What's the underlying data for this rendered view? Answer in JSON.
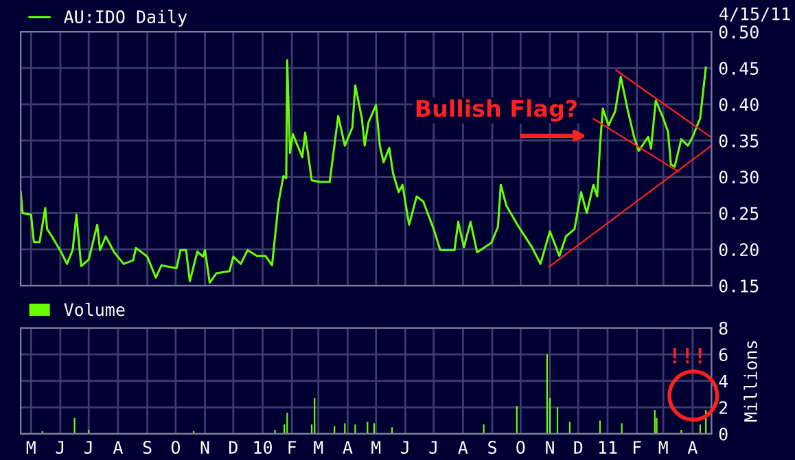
{
  "chart_data": [
    {
      "type": "line",
      "grid": true,
      "legend": "top left",
      "tick_labels": "y",
      "xlim": [
        "2009-04-20",
        "2011-04-21"
      ],
      "ylim": [
        0.15,
        0.5
      ],
      "yticks": [
        {
          "value": 0.15,
          "label": "0.15"
        },
        {
          "value": 0.2,
          "label": "0.20"
        },
        {
          "value": 0.25,
          "label": "0.25"
        },
        {
          "value": 0.3,
          "label": "0.30"
        },
        {
          "value": 0.35,
          "label": "0.35"
        },
        {
          "value": 0.4,
          "label": "0.40"
        },
        {
          "value": 0.45,
          "label": "0.45"
        },
        {
          "value": 0.5,
          "label": "0.50"
        }
      ],
      "xticks": [
        {
          "value": "2009-05-01",
          "label": null
        },
        {
          "value": "2009-06-01",
          "label": null
        },
        {
          "value": "2009-07-01",
          "label": null
        },
        {
          "value": "2009-08-01",
          "label": null
        },
        {
          "value": "2009-09-01",
          "label": null
        },
        {
          "value": "2009-10-01",
          "label": null
        },
        {
          "value": "2009-11-01",
          "label": null
        },
        {
          "value": "2009-12-01",
          "label": null
        },
        {
          "value": "2010-01-01",
          "label": null
        },
        {
          "value": "2010-02-01",
          "label": null
        },
        {
          "value": "2010-03-01",
          "label": null
        },
        {
          "value": "2010-04-01",
          "label": null
        },
        {
          "value": "2010-05-01",
          "label": null
        },
        {
          "value": "2010-06-01",
          "label": null
        },
        {
          "value": "2010-07-01",
          "label": null
        },
        {
          "value": "2010-08-01",
          "label": null
        },
        {
          "value": "2010-09-01",
          "label": null
        },
        {
          "value": "2010-10-01",
          "label": null
        },
        {
          "value": "2010-11-01",
          "label": null
        },
        {
          "value": "2010-12-01",
          "label": null
        },
        {
          "value": "2011-01-01",
          "label": null
        },
        {
          "value": "2011-02-01",
          "label": null
        },
        {
          "value": "2011-03-01",
          "label": null
        },
        {
          "value": "2011-04-01",
          "label": null
        }
      ],
      "annotations": [
        "4/15/11",
        "Bullish Flag?"
      ],
      "series": [
        {
          "name": "AU:IDO Daily",
          "color": "#66ff00",
          "x": [
            "2009-04-20",
            "2009-04-22",
            "2009-05-01",
            "2009-05-04",
            "2009-05-10",
            "2009-05-16",
            "2009-05-18",
            "2009-05-23",
            "2009-06-02",
            "2009-06-08",
            "2009-06-14",
            "2009-06-18",
            "2009-06-23",
            "2009-07-01",
            "2009-07-10",
            "2009-07-13",
            "2009-07-19",
            "2009-07-28",
            "2009-08-07",
            "2009-08-17",
            "2009-08-20",
            "2009-09-01",
            "2009-09-10",
            "2009-09-16",
            "2009-10-02",
            "2009-10-06",
            "2009-10-12",
            "2009-10-16",
            "2009-10-24",
            "2009-10-30",
            "2009-11-01",
            "2009-11-06",
            "2009-11-13",
            "2009-11-27",
            "2009-12-01",
            "2009-12-09",
            "2009-12-16",
            "2009-12-26",
            "2010-01-04",
            "2010-01-11",
            "2010-01-18",
            "2010-01-23",
            "2010-01-26",
            "2010-01-27",
            "2010-01-30",
            "2010-02-02",
            "2010-02-12",
            "2010-02-15",
            "2010-02-22",
            "2010-03-03",
            "2010-03-13",
            "2010-03-22",
            "2010-03-29",
            "2010-04-06",
            "2010-04-09",
            "2010-04-16",
            "2010-04-19",
            "2010-04-23",
            "2010-05-01",
            "2010-05-05",
            "2010-05-09",
            "2010-05-15",
            "2010-05-19",
            "2010-05-25",
            "2010-05-29",
            "2010-06-05",
            "2010-06-13",
            "2010-06-20",
            "2010-07-01",
            "2010-07-08",
            "2010-07-23",
            "2010-07-27",
            "2010-08-02",
            "2010-08-09",
            "2010-08-16",
            "2010-08-31",
            "2010-09-07",
            "2010-09-10",
            "2010-09-16",
            "2010-09-29",
            "2010-10-13",
            "2010-10-22",
            "2010-11-01",
            "2010-11-11",
            "2010-11-18",
            "2010-11-27",
            "2010-12-04",
            "2010-12-10",
            "2010-12-17",
            "2010-12-21",
            "2010-12-24",
            "2010-12-27",
            "2011-01-02",
            "2011-01-09",
            "2011-01-15",
            "2011-01-22",
            "2011-01-29",
            "2011-02-03",
            "2011-02-13",
            "2011-02-16",
            "2011-02-21",
            "2011-02-28",
            "2011-03-06",
            "2011-03-09",
            "2011-03-13",
            "2011-03-20",
            "2011-03-27",
            "2011-04-01",
            "2011-04-09",
            "2011-04-15"
          ],
          "values": [
            0.28,
            0.25,
            0.248,
            0.21,
            0.21,
            0.257,
            0.228,
            0.218,
            0.196,
            0.18,
            0.199,
            0.248,
            0.177,
            0.186,
            0.234,
            0.199,
            0.218,
            0.196,
            0.18,
            0.185,
            0.202,
            0.19,
            0.161,
            0.178,
            0.174,
            0.199,
            0.199,
            0.156,
            0.197,
            0.19,
            0.199,
            0.154,
            0.167,
            0.17,
            0.19,
            0.18,
            0.199,
            0.191,
            0.191,
            0.178,
            0.266,
            0.301,
            0.298,
            0.461,
            0.333,
            0.359,
            0.327,
            0.361,
            0.295,
            0.293,
            0.293,
            0.384,
            0.343,
            0.368,
            0.426,
            0.381,
            0.343,
            0.375,
            0.399,
            0.343,
            0.32,
            0.34,
            0.305,
            0.279,
            0.289,
            0.234,
            0.273,
            0.266,
            0.228,
            0.199,
            0.199,
            0.238,
            0.203,
            0.238,
            0.196,
            0.209,
            0.231,
            0.289,
            0.26,
            0.231,
            0.203,
            0.18,
            0.225,
            0.191,
            0.218,
            0.228,
            0.279,
            0.25,
            0.289,
            0.273,
            0.343,
            0.394,
            0.371,
            0.39,
            0.438,
            0.394,
            0.355,
            0.336,
            0.355,
            0.339,
            0.405,
            0.384,
            0.362,
            0.317,
            0.314,
            0.352,
            0.343,
            0.355,
            0.381,
            0.451
          ]
        },
        {
          "type": "line",
          "color": "#ff2020",
          "x": [
            "2011-01-10",
            "2011-04-20"
          ],
          "values": [
            0.447,
            0.355
          ]
        },
        {
          "type": "line",
          "color": "#ff2020",
          "x": [
            "2010-12-17",
            "2011-03-17"
          ],
          "values": [
            0.38,
            0.307
          ]
        },
        {
          "type": "line",
          "color": "#ff2020",
          "x": [
            "2010-10-31",
            "2011-04-21"
          ],
          "values": [
            0.176,
            0.343
          ]
        }
      ]
    },
    {
      "type": "bar",
      "grid": true,
      "legend": "top left",
      "ylabel": "Millions",
      "xlim": [
        "2009-04-20",
        "2011-04-21"
      ],
      "ylim": [
        0,
        8
      ],
      "yticks": [
        0,
        2,
        4,
        6,
        8
      ],
      "xticks": [
        {
          "value": "2009-05-01",
          "label": "M"
        },
        {
          "value": "2009-06-01",
          "label": "J"
        },
        {
          "value": "2009-07-01",
          "label": "J"
        },
        {
          "value": "2009-08-01",
          "label": "A"
        },
        {
          "value": "2009-09-01",
          "label": "S"
        },
        {
          "value": "2009-10-01",
          "label": "O"
        },
        {
          "value": "2009-11-01",
          "label": "N"
        },
        {
          "value": "2009-12-01",
          "label": "D"
        },
        {
          "value": "2010-01-01",
          "label": "10"
        },
        {
          "value": "2010-02-01",
          "label": "F"
        },
        {
          "value": "2010-03-01",
          "label": "M"
        },
        {
          "value": "2010-04-01",
          "label": "A"
        },
        {
          "value": "2010-05-01",
          "label": "M"
        },
        {
          "value": "2010-06-01",
          "label": "J"
        },
        {
          "value": "2010-07-01",
          "label": "J"
        },
        {
          "value": "2010-08-01",
          "label": "A"
        },
        {
          "value": "2010-09-01",
          "label": "S"
        },
        {
          "value": "2010-10-01",
          "label": "O"
        },
        {
          "value": "2010-11-01",
          "label": "N"
        },
        {
          "value": "2010-12-01",
          "label": "D"
        },
        {
          "value": "2011-01-01",
          "label": "11"
        },
        {
          "value": "2011-02-01",
          "label": "F"
        },
        {
          "value": "2011-03-01",
          "label": "M"
        },
        {
          "value": "2011-04-01",
          "label": "A"
        }
      ],
      "annotations": [
        "!!!"
      ],
      "series": [
        {
          "name": "Volume",
          "color": "#66ff00",
          "x": [
            "2009-05-13",
            "2009-06-16",
            "2009-07-01",
            "2009-10-20",
            "2010-01-14",
            "2010-01-24",
            "2010-01-27",
            "2010-02-22",
            "2010-02-25",
            "2010-03-18",
            "2010-03-29",
            "2010-04-09",
            "2010-04-22",
            "2010-04-29",
            "2010-05-18",
            "2010-08-23",
            "2010-09-27",
            "2010-10-29",
            "2010-11-01",
            "2010-11-09",
            "2010-11-22",
            "2010-12-24",
            "2011-01-16",
            "2011-02-20",
            "2011-02-22",
            "2011-03-20",
            "2011-04-09",
            "2011-04-15"
          ],
          "values": [
            0.2,
            1.2,
            0.3,
            0.2,
            0.3,
            0.7,
            1.6,
            0.7,
            2.7,
            0.6,
            0.8,
            0.7,
            0.9,
            0.8,
            0.5,
            0.7,
            2.1,
            6.0,
            2.7,
            2.0,
            0.9,
            1.0,
            0.8,
            1.8,
            1.2,
            0.3,
            0.7,
            1.8
          ]
        }
      ]
    }
  ]
}
